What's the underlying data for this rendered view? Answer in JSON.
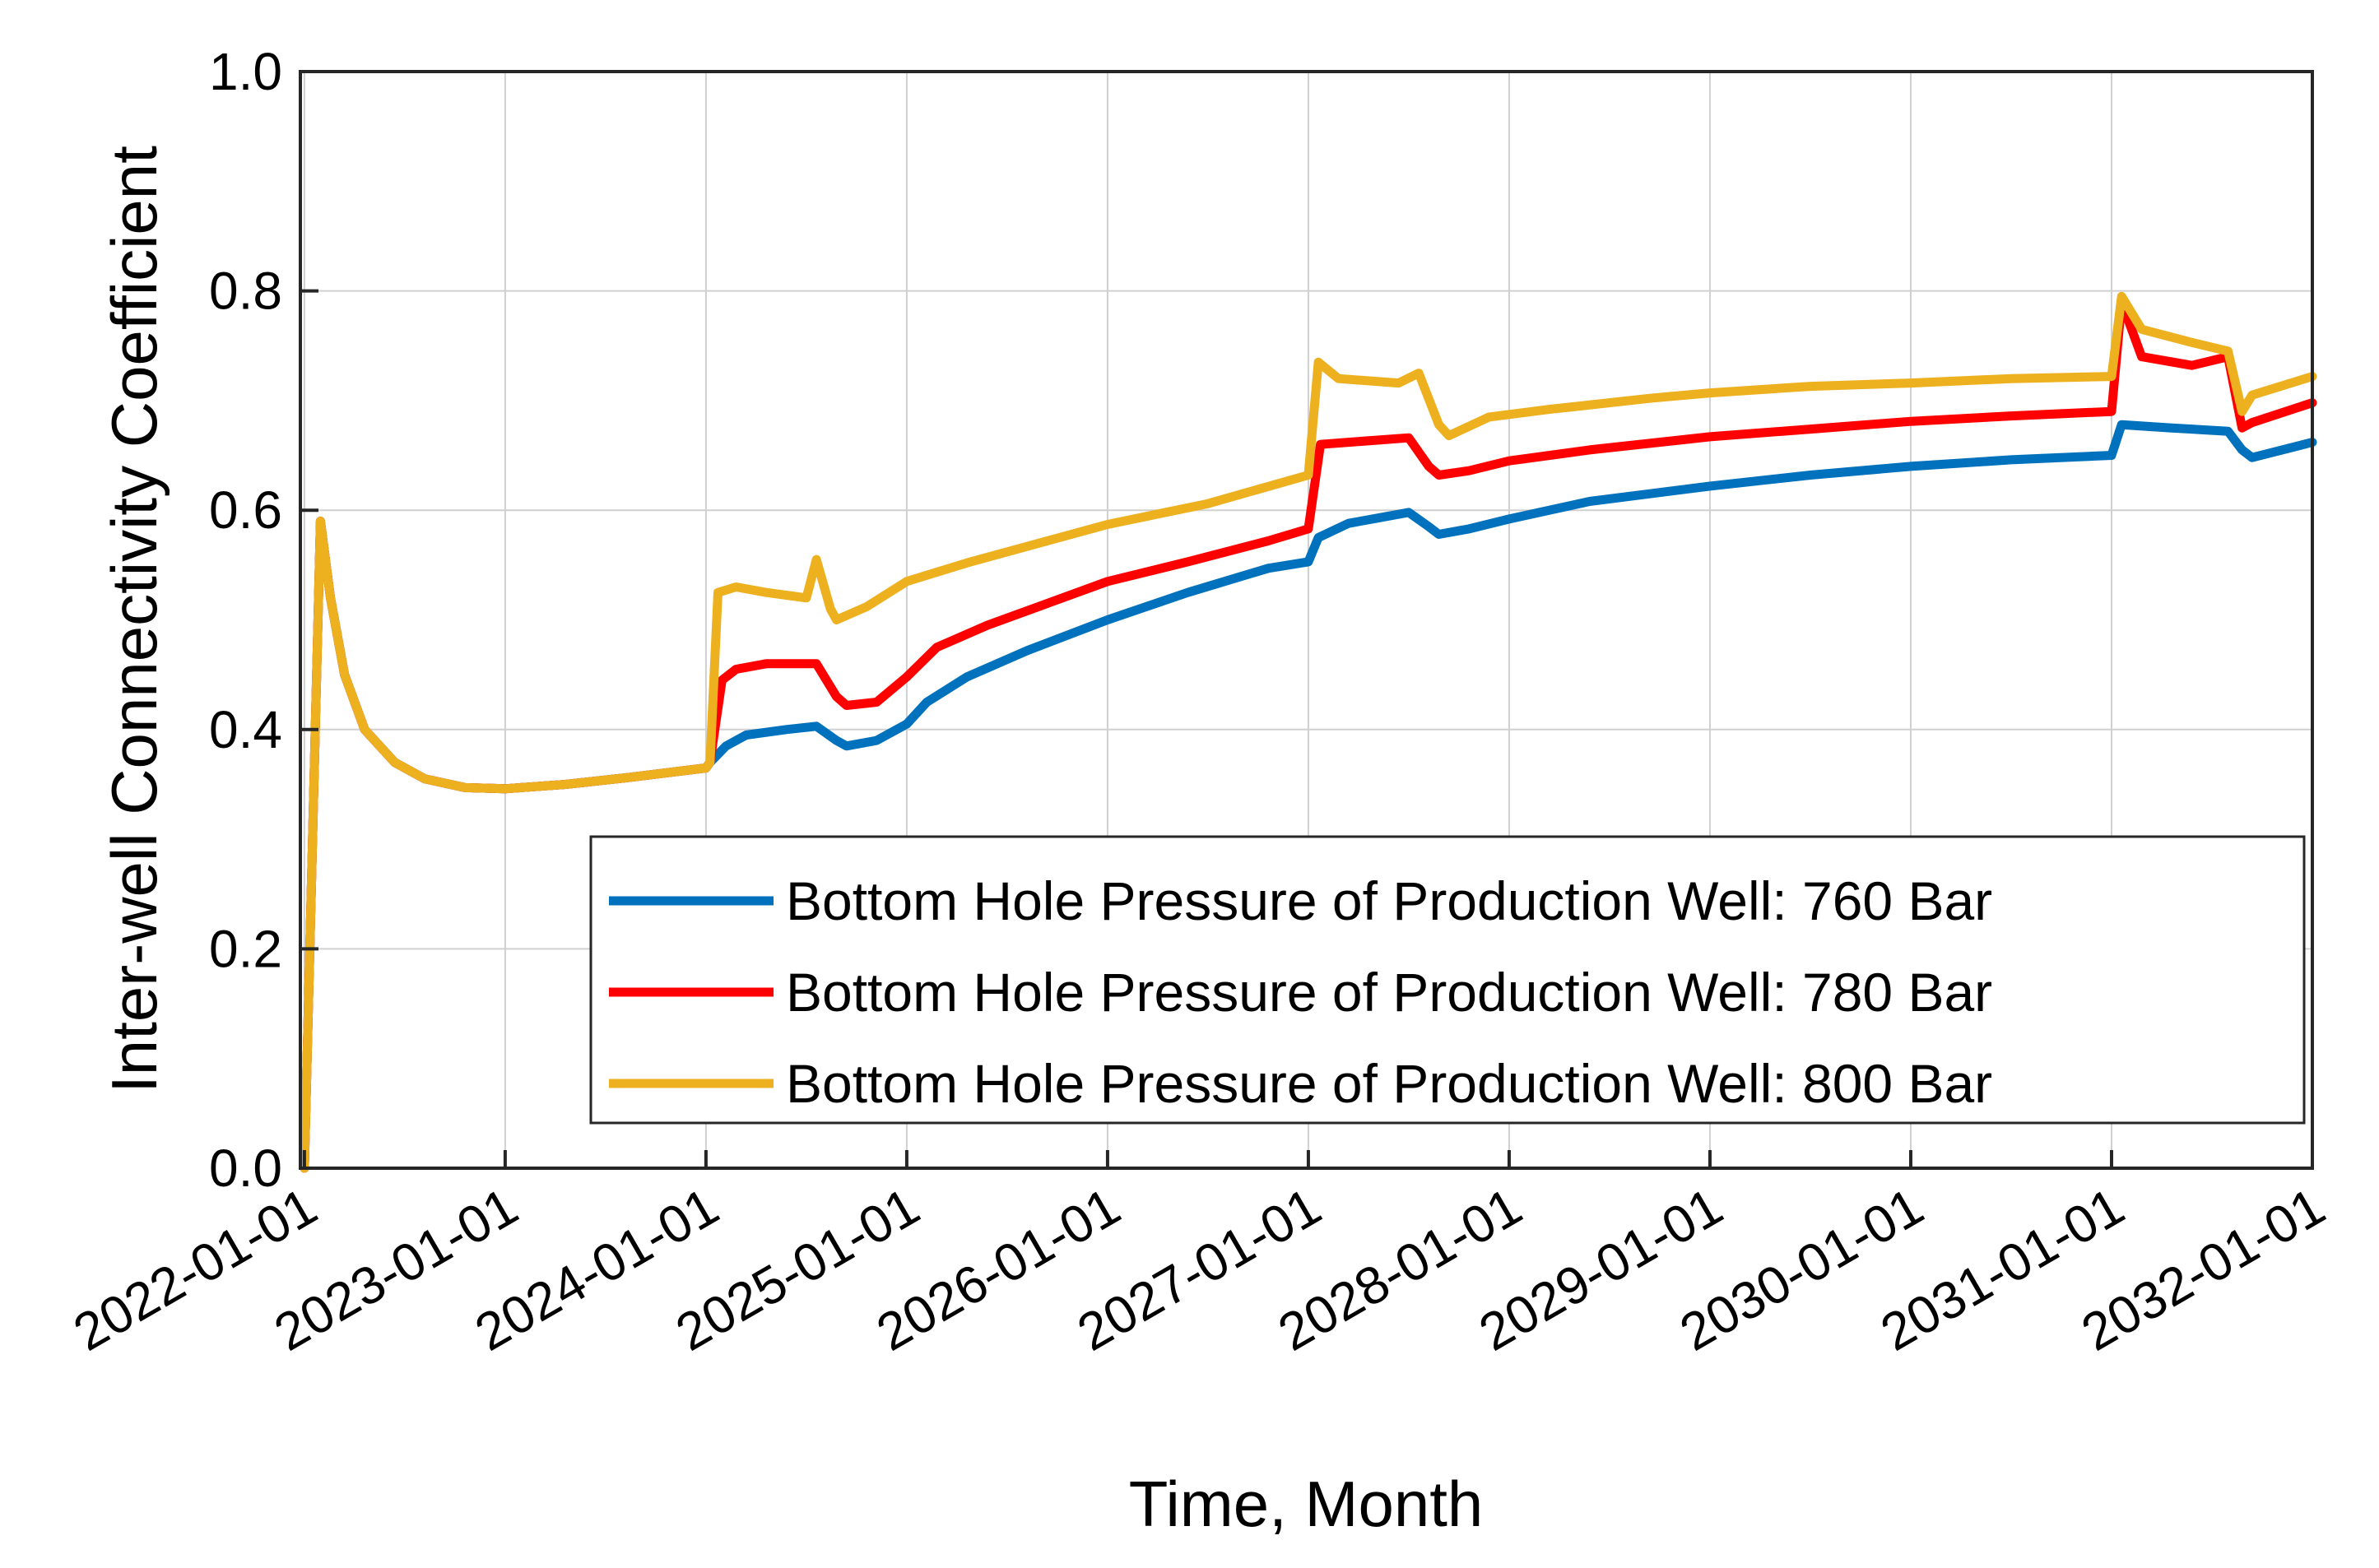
{
  "chart_data": {
    "type": "line",
    "title": "",
    "xlabel": "Time, Month",
    "ylabel": "Inter-well Connectivity Coefficient",
    "ylim": [
      0.0,
      1.0
    ],
    "xlim": [
      2021.98,
      2032.0
    ],
    "grid": true,
    "legend_position": "bottom-right",
    "y_ticks": [
      {
        "value": 0.0,
        "label": "0.0"
      },
      {
        "value": 0.2,
        "label": "0.2"
      },
      {
        "value": 0.4,
        "label": "0.4"
      },
      {
        "value": 0.6,
        "label": "0.6"
      },
      {
        "value": 0.8,
        "label": "0.8"
      },
      {
        "value": 1.0,
        "label": "1.0"
      }
    ],
    "x_ticks": [
      {
        "value": 2022,
        "label": "2022-01-01"
      },
      {
        "value": 2023,
        "label": "2023-01-01"
      },
      {
        "value": 2024,
        "label": "2024-01-01"
      },
      {
        "value": 2025,
        "label": "2025-01-01"
      },
      {
        "value": 2026,
        "label": "2026-01-01"
      },
      {
        "value": 2027,
        "label": "2027-01-01"
      },
      {
        "value": 2028,
        "label": "2028-01-01"
      },
      {
        "value": 2029,
        "label": "2029-01-01"
      },
      {
        "value": 2030,
        "label": "2030-01-01"
      },
      {
        "value": 2031,
        "label": "2031-01-01"
      },
      {
        "value": 2032,
        "label": "2032-01-01"
      }
    ],
    "series": [
      {
        "name": "Bottom Hole Pressure of Production Well: 760 Bar",
        "color": "#0072BD",
        "points": [
          [
            2022.0,
            0.0
          ],
          [
            2022.08,
            0.59
          ],
          [
            2022.13,
            0.52
          ],
          [
            2022.2,
            0.45
          ],
          [
            2022.3,
            0.4
          ],
          [
            2022.45,
            0.37
          ],
          [
            2022.6,
            0.355
          ],
          [
            2022.8,
            0.347
          ],
          [
            2023.0,
            0.346
          ],
          [
            2023.3,
            0.35
          ],
          [
            2023.6,
            0.356
          ],
          [
            2024.0,
            0.365
          ],
          [
            2024.02,
            0.37
          ],
          [
            2024.1,
            0.385
          ],
          [
            2024.2,
            0.395
          ],
          [
            2024.4,
            0.4
          ],
          [
            2024.55,
            0.403
          ],
          [
            2024.65,
            0.39
          ],
          [
            2024.7,
            0.385
          ],
          [
            2024.85,
            0.39
          ],
          [
            2025.0,
            0.405
          ],
          [
            2025.1,
            0.425
          ],
          [
            2025.3,
            0.448
          ],
          [
            2025.6,
            0.472
          ],
          [
            2026.0,
            0.5
          ],
          [
            2026.4,
            0.525
          ],
          [
            2026.8,
            0.547
          ],
          [
            2027.0,
            0.553
          ],
          [
            2027.05,
            0.575
          ],
          [
            2027.2,
            0.588
          ],
          [
            2027.5,
            0.598
          ],
          [
            2027.6,
            0.585
          ],
          [
            2027.65,
            0.578
          ],
          [
            2027.8,
            0.583
          ],
          [
            2028.0,
            0.592
          ],
          [
            2028.4,
            0.608
          ],
          [
            2029.0,
            0.622
          ],
          [
            2029.5,
            0.632
          ],
          [
            2030.0,
            0.64
          ],
          [
            2030.5,
            0.646
          ],
          [
            2031.0,
            0.65
          ],
          [
            2031.05,
            0.678
          ],
          [
            2031.3,
            0.675
          ],
          [
            2031.58,
            0.672
          ],
          [
            2031.65,
            0.655
          ],
          [
            2031.7,
            0.648
          ],
          [
            2032.0,
            0.662
          ]
        ]
      },
      {
        "name": "Bottom Hole Pressure of Production Well: 780 Bar",
        "color": "#FF0000",
        "points": [
          [
            2022.0,
            0.0
          ],
          [
            2022.08,
            0.59
          ],
          [
            2022.13,
            0.52
          ],
          [
            2022.2,
            0.45
          ],
          [
            2022.3,
            0.4
          ],
          [
            2022.45,
            0.37
          ],
          [
            2022.6,
            0.355
          ],
          [
            2022.8,
            0.347
          ],
          [
            2023.0,
            0.346
          ],
          [
            2023.3,
            0.35
          ],
          [
            2023.6,
            0.356
          ],
          [
            2024.0,
            0.365
          ],
          [
            2024.02,
            0.37
          ],
          [
            2024.08,
            0.445
          ],
          [
            2024.15,
            0.455
          ],
          [
            2024.3,
            0.46
          ],
          [
            2024.55,
            0.46
          ],
          [
            2024.65,
            0.43
          ],
          [
            2024.7,
            0.422
          ],
          [
            2024.85,
            0.425
          ],
          [
            2025.0,
            0.448
          ],
          [
            2025.15,
            0.475
          ],
          [
            2025.4,
            0.495
          ],
          [
            2025.7,
            0.515
          ],
          [
            2026.0,
            0.535
          ],
          [
            2026.4,
            0.553
          ],
          [
            2026.8,
            0.572
          ],
          [
            2027.0,
            0.583
          ],
          [
            2027.06,
            0.66
          ],
          [
            2027.2,
            0.662
          ],
          [
            2027.5,
            0.666
          ],
          [
            2027.6,
            0.64
          ],
          [
            2027.65,
            0.632
          ],
          [
            2027.8,
            0.636
          ],
          [
            2028.0,
            0.645
          ],
          [
            2028.4,
            0.655
          ],
          [
            2029.0,
            0.667
          ],
          [
            2029.5,
            0.674
          ],
          [
            2030.0,
            0.681
          ],
          [
            2030.5,
            0.686
          ],
          [
            2031.0,
            0.69
          ],
          [
            2031.05,
            0.79
          ],
          [
            2031.15,
            0.74
          ],
          [
            2031.4,
            0.732
          ],
          [
            2031.58,
            0.74
          ],
          [
            2031.65,
            0.675
          ],
          [
            2031.7,
            0.68
          ],
          [
            2032.0,
            0.698
          ]
        ]
      },
      {
        "name": "Bottom Hole Pressure of Production Well: 800 Bar",
        "color": "#EDB120",
        "points": [
          [
            2022.0,
            0.0
          ],
          [
            2022.08,
            0.59
          ],
          [
            2022.13,
            0.52
          ],
          [
            2022.2,
            0.45
          ],
          [
            2022.3,
            0.4
          ],
          [
            2022.45,
            0.37
          ],
          [
            2022.6,
            0.355
          ],
          [
            2022.8,
            0.347
          ],
          [
            2023.0,
            0.346
          ],
          [
            2023.3,
            0.35
          ],
          [
            2023.6,
            0.356
          ],
          [
            2024.0,
            0.365
          ],
          [
            2024.02,
            0.37
          ],
          [
            2024.06,
            0.525
          ],
          [
            2024.15,
            0.53
          ],
          [
            2024.3,
            0.525
          ],
          [
            2024.5,
            0.52
          ],
          [
            2024.55,
            0.555
          ],
          [
            2024.62,
            0.51
          ],
          [
            2024.65,
            0.5
          ],
          [
            2024.8,
            0.512
          ],
          [
            2025.0,
            0.535
          ],
          [
            2025.3,
            0.552
          ],
          [
            2025.7,
            0.572
          ],
          [
            2026.0,
            0.587
          ],
          [
            2026.5,
            0.606
          ],
          [
            2027.0,
            0.632
          ],
          [
            2027.05,
            0.735
          ],
          [
            2027.15,
            0.72
          ],
          [
            2027.45,
            0.716
          ],
          [
            2027.55,
            0.725
          ],
          [
            2027.65,
            0.678
          ],
          [
            2027.7,
            0.668
          ],
          [
            2027.9,
            0.685
          ],
          [
            2028.2,
            0.692
          ],
          [
            2028.7,
            0.702
          ],
          [
            2029.0,
            0.707
          ],
          [
            2029.5,
            0.713
          ],
          [
            2030.0,
            0.716
          ],
          [
            2030.5,
            0.72
          ],
          [
            2031.0,
            0.722
          ],
          [
            2031.05,
            0.795
          ],
          [
            2031.15,
            0.765
          ],
          [
            2031.4,
            0.753
          ],
          [
            2031.58,
            0.745
          ],
          [
            2031.65,
            0.69
          ],
          [
            2031.7,
            0.705
          ],
          [
            2032.0,
            0.722
          ]
        ]
      }
    ]
  }
}
